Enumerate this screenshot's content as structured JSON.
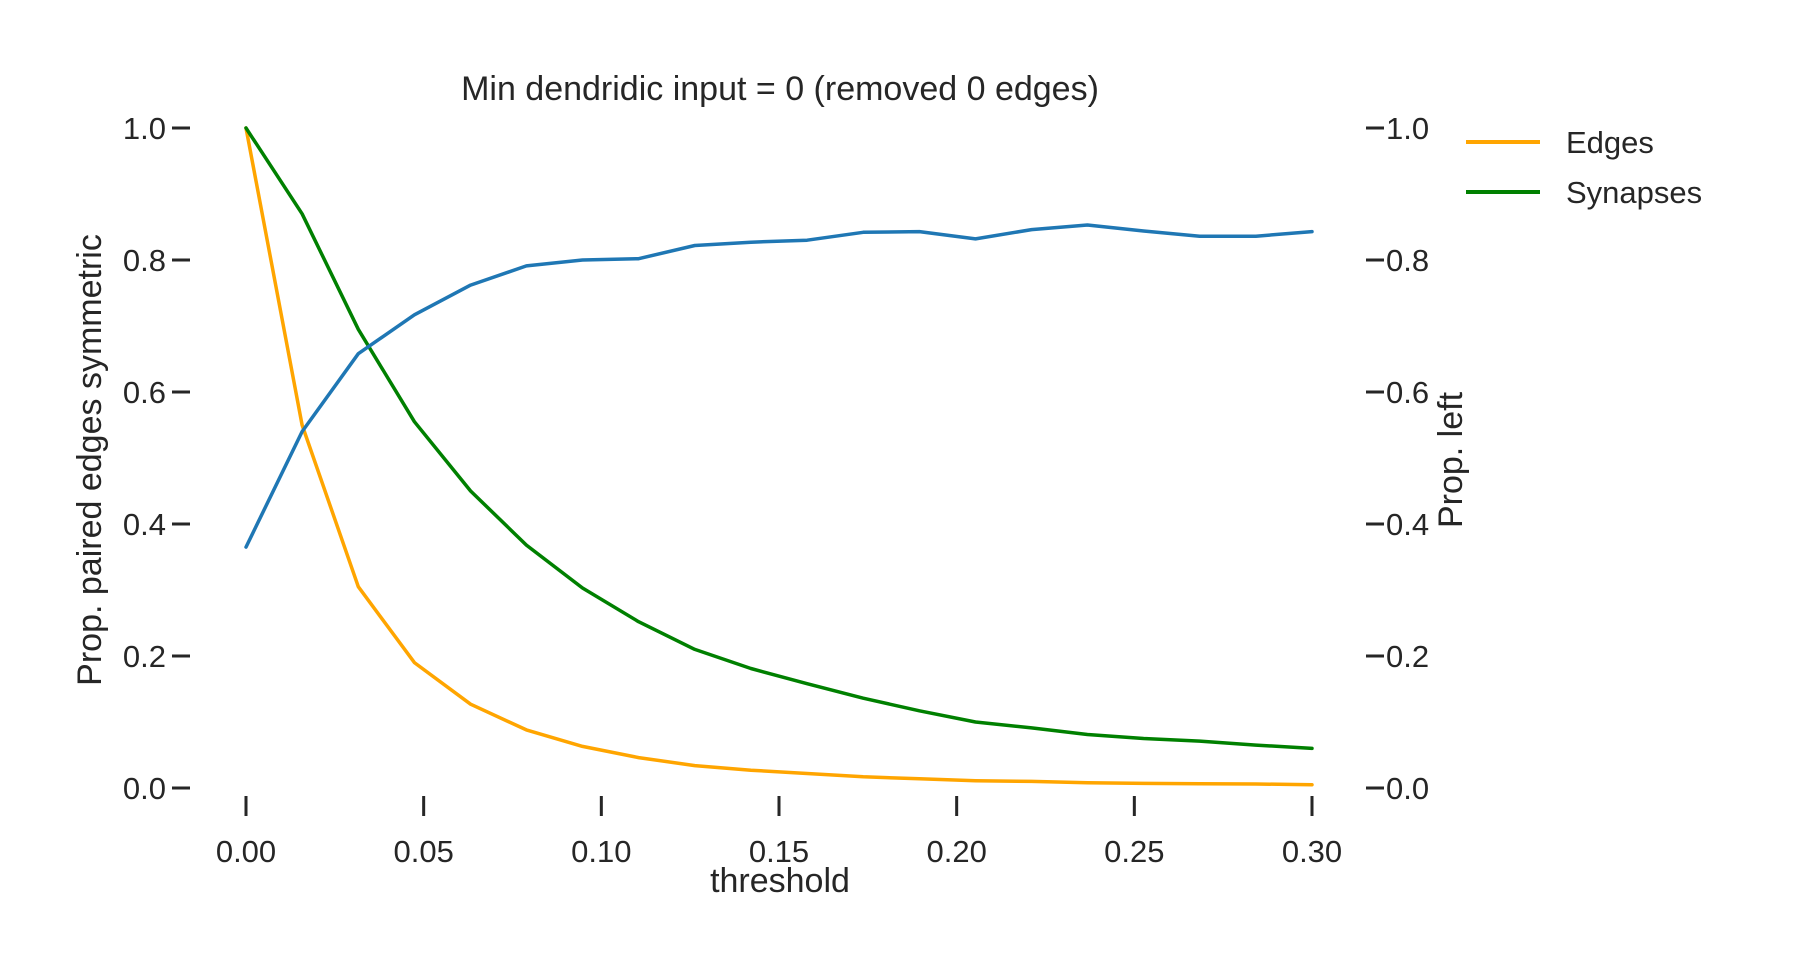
{
  "chart_data": {
    "type": "line",
    "title": "Min dendridic input = 0 (removed 0 edges)",
    "xlabel": "threshold",
    "ylabel": "Prop. paired edges symmetric",
    "y2label": "Prop. left",
    "xlim": [
      0.0,
      0.3
    ],
    "ylim": [
      0.0,
      1.0
    ],
    "y2lim": [
      0.0,
      1.0
    ],
    "grid": false,
    "legend_position": "top-right, outside plot",
    "x_ticks": [
      "0.00",
      "0.05",
      "0.10",
      "0.15",
      "0.20",
      "0.25",
      "0.30"
    ],
    "x_tick_values": [
      0.0,
      0.05,
      0.1,
      0.15,
      0.2,
      0.25,
      0.3
    ],
    "y_ticks": [
      "0.0",
      "0.2",
      "0.4",
      "0.6",
      "0.8",
      "1.0"
    ],
    "y_tick_values": [
      0.0,
      0.2,
      0.4,
      0.6,
      0.8,
      1.0
    ],
    "y2_ticks": [
      "0.0",
      "0.2",
      "0.4",
      "0.6",
      "0.8",
      "1.0"
    ],
    "y2_tick_values": [
      0.0,
      0.2,
      0.4,
      0.6,
      0.8,
      1.0
    ],
    "x": [
      0.0,
      0.0158,
      0.0316,
      0.0474,
      0.0632,
      0.0789,
      0.0947,
      0.1105,
      0.1263,
      0.1421,
      0.1579,
      0.1737,
      0.1895,
      0.2053,
      0.2211,
      0.2368,
      0.2526,
      0.2684,
      0.2842,
      0.3
    ],
    "series": [
      {
        "name": "Edges",
        "color": "#FFA500",
        "axis": "left",
        "values": [
          1.0,
          0.55,
          0.305,
          0.19,
          0.127,
          0.088,
          0.063,
          0.046,
          0.034,
          0.027,
          0.022,
          0.017,
          0.014,
          0.011,
          0.01,
          0.008,
          0.007,
          0.0065,
          0.006,
          0.005
        ]
      },
      {
        "name": "Synapses",
        "color": "#008000",
        "axis": "left",
        "values": [
          1.0,
          0.87,
          0.695,
          0.555,
          0.45,
          0.368,
          0.303,
          0.252,
          0.21,
          0.181,
          0.158,
          0.136,
          0.117,
          0.1,
          0.091,
          0.081,
          0.075,
          0.071,
          0.065,
          0.06
        ]
      },
      {
        "name": "",
        "color": "#1F77B4",
        "axis": "right",
        "values": [
          0.365,
          0.54,
          0.658,
          0.717,
          0.762,
          0.791,
          0.8,
          0.802,
          0.822,
          0.827,
          0.83,
          0.842,
          0.843,
          0.832,
          0.846,
          0.853,
          0.844,
          0.836,
          0.836,
          0.843
        ]
      }
    ]
  }
}
